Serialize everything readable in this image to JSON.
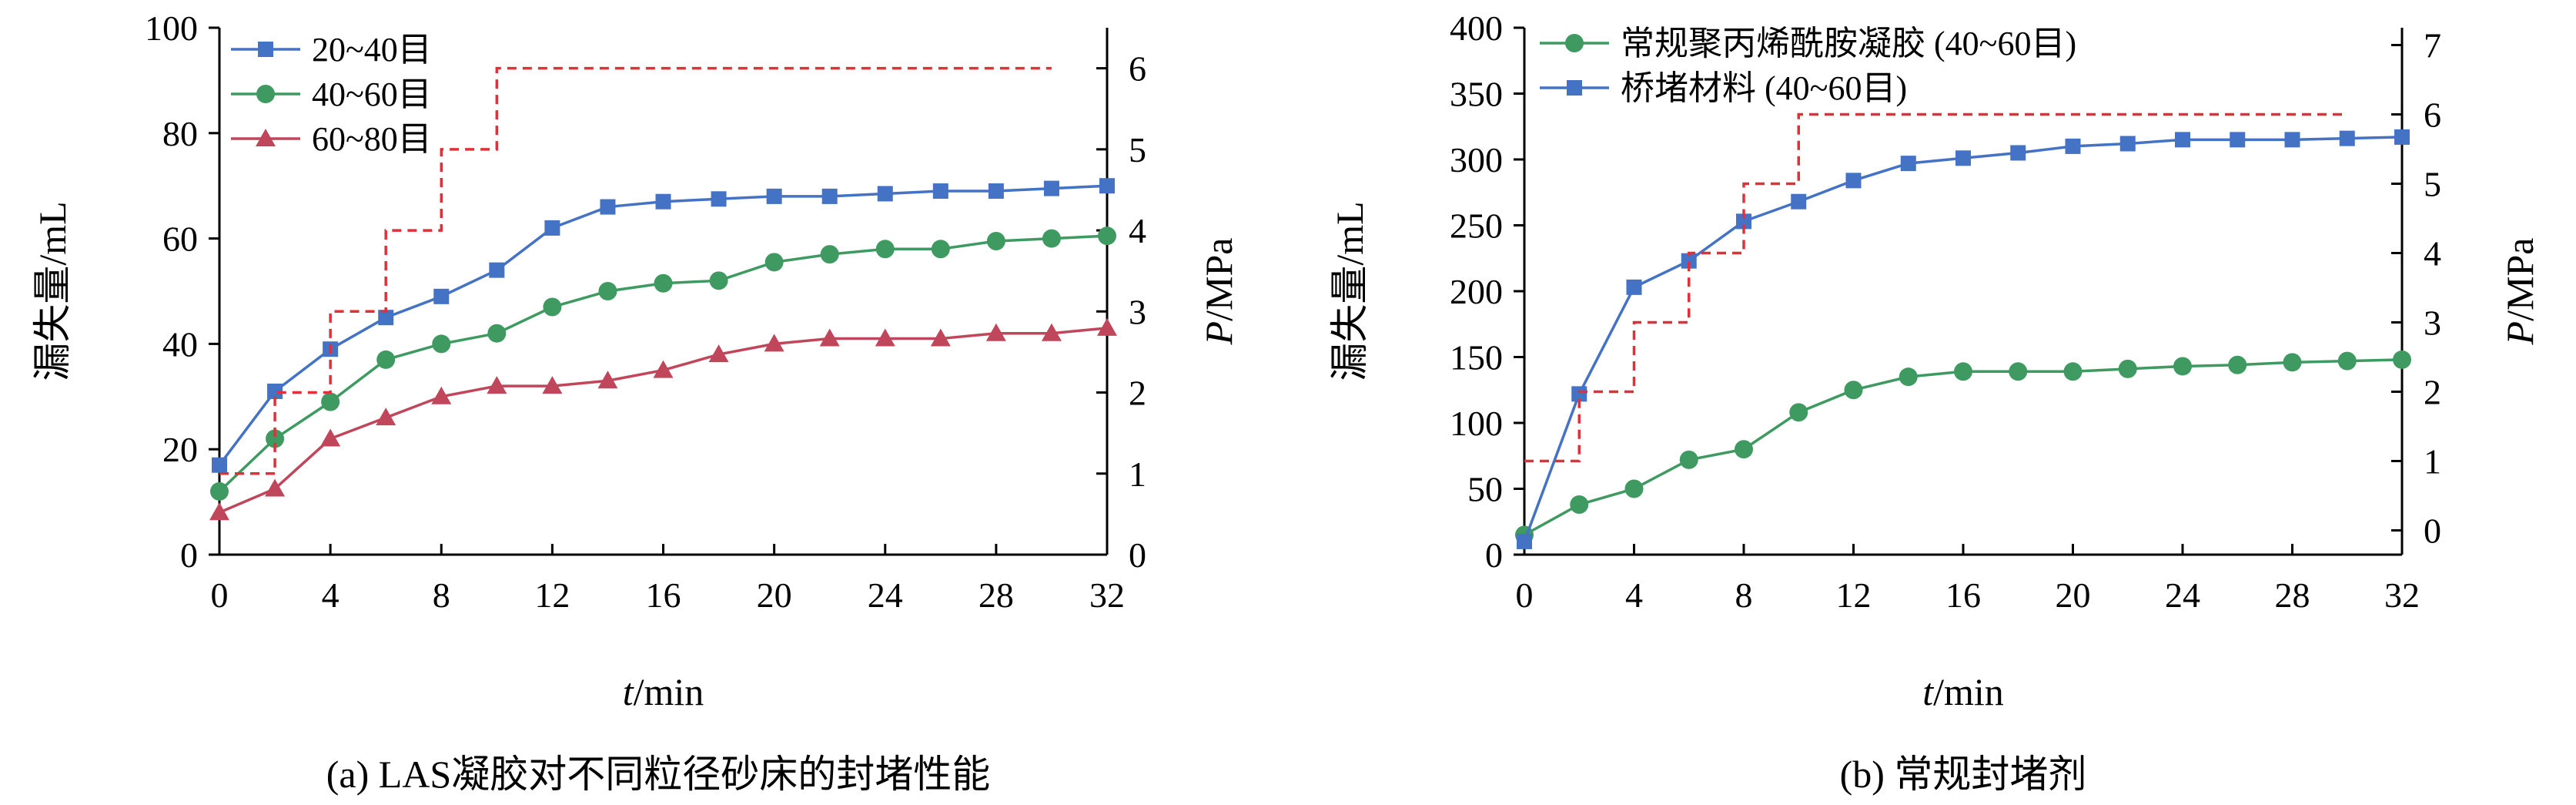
{
  "chart_data": [
    {
      "type": "line",
      "panel": "a",
      "caption": "(a) LAS凝胶对不同粒径砂床的封堵性能",
      "xlabel": "t/min",
      "xlabel_italic": "t",
      "xlabel_rest": "/min",
      "ylabel": "漏失量/mL",
      "y2label": "P/MPa",
      "y2label_italic": "P",
      "y2label_rest": "/MPa",
      "xlim": [
        0,
        32
      ],
      "xticks": [
        "0",
        "4",
        "8",
        "12",
        "16",
        "20",
        "24",
        "28",
        "32"
      ],
      "ylim": [
        0,
        100
      ],
      "yticks": [
        "0",
        "20",
        "40",
        "60",
        "80",
        "100"
      ],
      "y2lim": [
        0,
        6.5
      ],
      "y2ticks": [
        "0",
        "1",
        "2",
        "3",
        "4",
        "5",
        "6"
      ],
      "grid": false,
      "legend_position": "top-left",
      "series": [
        {
          "name": "20~40目",
          "color": "#4472C4",
          "marker": "square",
          "axis": "left",
          "x": [
            0,
            2,
            4,
            6,
            8,
            10,
            12,
            14,
            16,
            18,
            20,
            22,
            24,
            26,
            28,
            30,
            32
          ],
          "y": [
            17,
            31,
            39,
            45,
            49,
            54,
            62,
            66,
            67,
            67.5,
            68,
            68,
            68.5,
            69,
            69,
            69.5,
            70
          ]
        },
        {
          "name": "40~60目",
          "color": "#3F9A62",
          "marker": "circle",
          "axis": "left",
          "x": [
            0,
            2,
            4,
            6,
            8,
            10,
            12,
            14,
            16,
            18,
            20,
            22,
            24,
            26,
            28,
            30,
            32
          ],
          "y": [
            12,
            22,
            29,
            37,
            40,
            42,
            47,
            50,
            51.5,
            52,
            55.5,
            57,
            58,
            58,
            59.5,
            60,
            60.5
          ]
        },
        {
          "name": "60~80目",
          "color": "#C0475B",
          "marker": "triangle",
          "axis": "left",
          "x": [
            0,
            2,
            4,
            6,
            8,
            10,
            12,
            14,
            16,
            18,
            20,
            22,
            24,
            26,
            28,
            30,
            32
          ],
          "y": [
            8,
            12.5,
            22,
            26,
            30,
            32,
            32,
            33,
            35,
            38,
            40,
            41,
            41,
            41,
            42,
            42,
            43
          ]
        },
        {
          "name": "",
          "color": "#E0303A",
          "dash": true,
          "axis": "right",
          "step": true,
          "x": [
            0,
            2,
            4,
            6,
            8,
            10,
            30
          ],
          "y": [
            1,
            2,
            3,
            4,
            5,
            6,
            6
          ]
        }
      ]
    },
    {
      "type": "line",
      "panel": "b",
      "caption": "(b) 常规封堵剂",
      "xlabel": "t/min",
      "xlabel_italic": "t",
      "xlabel_rest": "/min",
      "ylabel": "漏失量/mL",
      "y2label": "P/MPa",
      "y2label_italic": "P",
      "y2label_rest": "/MPa",
      "xlim": [
        0,
        32
      ],
      "xticks": [
        "0",
        "4",
        "8",
        "12",
        "16",
        "20",
        "24",
        "28",
        "32"
      ],
      "ylim": [
        0,
        400
      ],
      "yticks": [
        "0",
        "50",
        "100",
        "150",
        "200",
        "250",
        "300",
        "350",
        "400"
      ],
      "y2lim": [
        -0.35,
        7.25
      ],
      "y2ticks": [
        "0",
        "1",
        "2",
        "3",
        "4",
        "5",
        "6",
        "7"
      ],
      "grid": false,
      "legend_position": "top-left",
      "series": [
        {
          "name": "常规聚丙烯酰胺凝胶 (40~60目)",
          "color": "#3F9A62",
          "marker": "circle",
          "axis": "left",
          "x": [
            0,
            2,
            4,
            6,
            8,
            10,
            12,
            14,
            16,
            18,
            20,
            22,
            24,
            26,
            28,
            30,
            32
          ],
          "y": [
            15,
            38,
            50,
            72,
            80,
            108,
            125,
            135,
            139,
            139,
            139,
            141,
            143,
            144,
            146,
            147,
            148
          ]
        },
        {
          "name": "桥堵材料 (40~60目)",
          "color": "#4472C4",
          "marker": "square",
          "axis": "left",
          "x": [
            0,
            2,
            4,
            6,
            8,
            10,
            12,
            14,
            16,
            18,
            20,
            22,
            24,
            26,
            28,
            30,
            32
          ],
          "y": [
            10,
            122,
            203,
            223,
            253,
            268,
            284,
            297,
            301,
            305,
            310,
            312,
            315,
            315,
            315,
            316,
            317
          ]
        },
        {
          "name": "",
          "color": "#E0303A",
          "dash": true,
          "axis": "right",
          "step": true,
          "x": [
            0,
            2,
            4,
            6,
            8,
            10,
            30
          ],
          "y": [
            1,
            2,
            3,
            4,
            5,
            6,
            6
          ]
        }
      ]
    }
  ]
}
